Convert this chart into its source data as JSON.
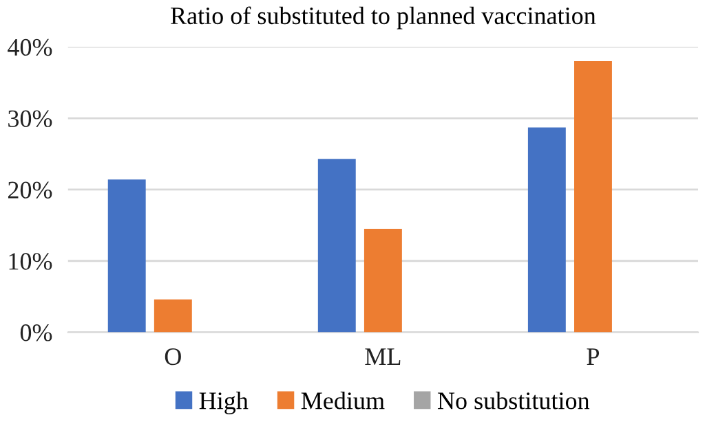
{
  "chart_data": {
    "type": "bar",
    "title": "Ratio of substituted to planned vaccination",
    "categories": [
      "O",
      "ML",
      "P"
    ],
    "series": [
      {
        "name": "High",
        "color": "#4472c4",
        "values": [
          21.4,
          24.3,
          28.7
        ]
      },
      {
        "name": "Medium",
        "color": "#ed7d31",
        "values": [
          4.6,
          14.5,
          38.0
        ]
      },
      {
        "name": "No substitution",
        "color": "#a5a5a5",
        "values": [
          0,
          0,
          0
        ]
      }
    ],
    "ylim": [
      0,
      40
    ],
    "yticks": [
      {
        "value": 0,
        "label": "0%"
      },
      {
        "value": 10,
        "label": "10%"
      },
      {
        "value": 20,
        "label": "20%"
      },
      {
        "value": 30,
        "label": "30%"
      },
      {
        "value": 40,
        "label": "40%"
      }
    ],
    "grid": "y",
    "legend": "bottom"
  }
}
